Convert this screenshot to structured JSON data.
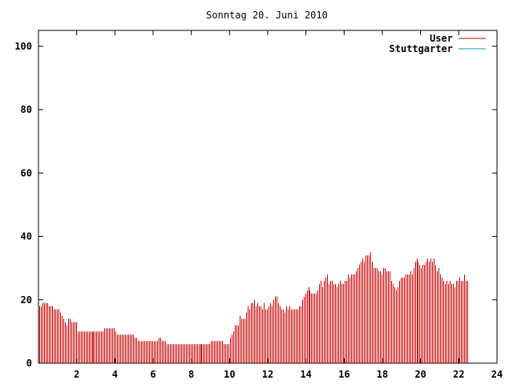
{
  "chart_data": {
    "type": "bar",
    "title": "Sonntag 20. Juni 2010",
    "xlabel": "",
    "ylabel": "",
    "xlim": [
      0,
      24
    ],
    "ylim": [
      0,
      105
    ],
    "x_ticks": [
      2,
      4,
      6,
      8,
      10,
      12,
      14,
      16,
      18,
      20,
      22,
      24
    ],
    "y_ticks": [
      0,
      20,
      40,
      60,
      80,
      100
    ],
    "grid": false,
    "legend_position": "top-right",
    "series": [
      {
        "name": "User",
        "color": "#cc0000",
        "x_start": 0.0,
        "x_step": 0.0833,
        "values": [
          18,
          18,
          19,
          19,
          19,
          19,
          18,
          18,
          18,
          17,
          17,
          17,
          17,
          16,
          15,
          14,
          13,
          12,
          14,
          14,
          13,
          13,
          13,
          13,
          10,
          10,
          10,
          10,
          10,
          10,
          10,
          10,
          10,
          10,
          10,
          10,
          10,
          10,
          10,
          10,
          10,
          11,
          11,
          11,
          11,
          11,
          11,
          11,
          10,
          9,
          9,
          9,
          9,
          9,
          9,
          9,
          9,
          9,
          9,
          9,
          8,
          8,
          7,
          7,
          7,
          7,
          7,
          7,
          7,
          7,
          7,
          7,
          7,
          7,
          7,
          8,
          8,
          7,
          7,
          7,
          6,
          6,
          6,
          6,
          6,
          6,
          6,
          6,
          6,
          6,
          6,
          6,
          6,
          6,
          6,
          6,
          6,
          6,
          6,
          6,
          6,
          6,
          6,
          6,
          6,
          6,
          6,
          6,
          7,
          7,
          7,
          7,
          7,
          7,
          7,
          7,
          6,
          6,
          6,
          6,
          8,
          9,
          10,
          12,
          12,
          12,
          15,
          14,
          14,
          14,
          16,
          18,
          17,
          19,
          19,
          20,
          18,
          19,
          18,
          18,
          17,
          19,
          17,
          17,
          18,
          19,
          18,
          20,
          21,
          21,
          19,
          18,
          17,
          17,
          16,
          18,
          17,
          18,
          17,
          17,
          17,
          17,
          17,
          18,
          18,
          20,
          21,
          22,
          23,
          24,
          23,
          22,
          22,
          22,
          22,
          23,
          25,
          26,
          24,
          26,
          27,
          28,
          25,
          26,
          26,
          25,
          25,
          24,
          25,
          26,
          25,
          25,
          26,
          26,
          28,
          27,
          28,
          28,
          28,
          29,
          30,
          31,
          32,
          33,
          32,
          34,
          34,
          34,
          35,
          32,
          30,
          30,
          30,
          29,
          29,
          28,
          30,
          30,
          29,
          29,
          29,
          26,
          25,
          24,
          23,
          24,
          26,
          27,
          27,
          27,
          28,
          28,
          28,
          29,
          28,
          30,
          32,
          33,
          32,
          31,
          30,
          31,
          31,
          32,
          33,
          32,
          33,
          32,
          33,
          31,
          29,
          30,
          28,
          27,
          26,
          25,
          26,
          25,
          26,
          25,
          25,
          24,
          26,
          26,
          27,
          26,
          26,
          28,
          26,
          26
        ]
      },
      {
        "name": "Stuttgarter",
        "color": "#009999",
        "values": []
      }
    ]
  }
}
